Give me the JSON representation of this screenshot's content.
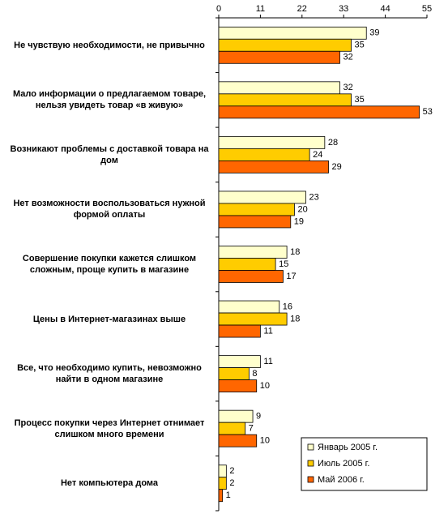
{
  "chart_data": {
    "type": "bar",
    "orientation": "horizontal",
    "categories": [
      "Не чувствую необходимости, не привычно",
      "Мало информации о предлагаемом товаре, нельзя увидеть товар «в живую»",
      "Возникают проблемы с доставкой товара на дом",
      "Нет возможности воспользоваться нужной формой оплаты",
      "Совершение покупки кажется слишком сложным, проще купить в магазине",
      "Цены в Интернет-магазинах выше",
      "Все, что необходимо купить, невозможно найти в одном магазине",
      "Процесс покупки через Интернет отнимает слишком много времени",
      "Нет компьютера дома"
    ],
    "series": [
      {
        "name": "Январь 2005 г.",
        "color": "#ffffcc",
        "values": [
          39,
          32,
          28,
          23,
          18,
          16,
          11,
          9,
          2
        ]
      },
      {
        "name": "Июль 2005 г.",
        "color": "#ffcc00",
        "values": [
          35,
          35,
          24,
          20,
          15,
          18,
          8,
          7,
          2
        ]
      },
      {
        "name": "Май 2006 г.",
        "color": "#ff6600",
        "values": [
          32,
          53,
          29,
          19,
          17,
          11,
          10,
          10,
          1
        ]
      }
    ],
    "xlim": [
      0,
      55
    ],
    "xticks": [
      0,
      11,
      22,
      33,
      44,
      55
    ],
    "legend": "lower right"
  }
}
